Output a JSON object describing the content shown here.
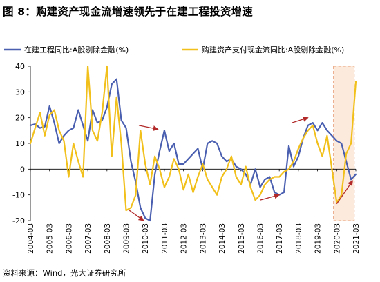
{
  "figure": {
    "title": "图 8：购建资产现金流增速领先于在建工程投资增速",
    "source": "资料来源：Wind，光大证券研究所"
  },
  "chart_data": {
    "type": "line",
    "ylim": [
      -20,
      40
    ],
    "yticks": [
      -20,
      -10,
      0,
      10,
      20,
      30,
      40
    ],
    "x_start": "2004-03",
    "x_end": "2021-03",
    "xticks": [
      "2004-03",
      "2005-03",
      "2006-03",
      "2007-03",
      "2008-03",
      "2009-03",
      "2010-03",
      "2011-03",
      "2012-03",
      "2013-03",
      "2014-03",
      "2015-03",
      "2016-03",
      "2017-03",
      "2018-03",
      "2019-03",
      "2020-03",
      "2021-03"
    ],
    "legend_position": "top",
    "grid": false,
    "colors": {
      "series1": "#4a5fb0",
      "series2": "#f2c01b",
      "arrow": "#b22a2a",
      "highlight_fill": "#fbe3d0",
      "highlight_border": "#e8a07a"
    },
    "highlight": {
      "x": [
        "2020-01",
        "2021-02"
      ]
    },
    "annotations": {
      "arrows": [
        {
          "from": [
            "2009-05",
            -16
          ],
          "to": [
            "2010-02",
            -20
          ]
        },
        {
          "from": [
            "2009-11",
            17
          ],
          "to": [
            "2010-11",
            15.5
          ]
        },
        {
          "from": [
            "2016-03",
            -12
          ],
          "to": [
            "2017-03",
            -10
          ]
        },
        {
          "from": [
            "2017-11",
            18
          ],
          "to": [
            "2018-09",
            20
          ]
        },
        {
          "from": [
            "2020-03",
            -13.5
          ],
          "to": [
            "2021-01",
            -4.5
          ]
        }
      ]
    },
    "series": [
      {
        "name": "在建工程同比:A股剔除金融(%)",
        "points": [
          [
            "2004-03",
            17
          ],
          [
            "2004-06",
            17.5
          ],
          [
            "2004-09",
            16
          ],
          [
            "2004-12",
            16.5
          ],
          [
            "2005-03",
            24.5
          ],
          [
            "2005-06",
            18
          ],
          [
            "2005-09",
            10
          ],
          [
            "2005-12",
            13
          ],
          [
            "2006-03",
            15
          ],
          [
            "2006-06",
            16
          ],
          [
            "2006-09",
            23
          ],
          [
            "2006-12",
            17
          ],
          [
            "2007-03",
            11
          ],
          [
            "2007-06",
            23
          ],
          [
            "2007-09",
            18
          ],
          [
            "2007-12",
            19
          ],
          [
            "2008-03",
            24
          ],
          [
            "2008-06",
            33
          ],
          [
            "2008-09",
            35
          ],
          [
            "2008-12",
            19
          ],
          [
            "2009-03",
            16
          ],
          [
            "2009-06",
            3
          ],
          [
            "2009-09",
            -5
          ],
          [
            "2009-12",
            -15
          ],
          [
            "2010-03",
            -19
          ],
          [
            "2010-06",
            -20
          ],
          [
            "2010-09",
            -2
          ],
          [
            "2010-12",
            7
          ],
          [
            "2011-03",
            15
          ],
          [
            "2011-06",
            7
          ],
          [
            "2011-09",
            10
          ],
          [
            "2011-12",
            2
          ],
          [
            "2012-03",
            2
          ],
          [
            "2012-06",
            4
          ],
          [
            "2012-09",
            6
          ],
          [
            "2012-12",
            8
          ],
          [
            "2013-03",
            0
          ],
          [
            "2013-06",
            10
          ],
          [
            "2013-09",
            11
          ],
          [
            "2013-12",
            10
          ],
          [
            "2014-03",
            5
          ],
          [
            "2014-06",
            3
          ],
          [
            "2014-09",
            4
          ],
          [
            "2014-12",
            1
          ],
          [
            "2015-03",
            0
          ],
          [
            "2015-06",
            -2
          ],
          [
            "2015-09",
            -6
          ],
          [
            "2015-12",
            0
          ],
          [
            "2016-03",
            -7
          ],
          [
            "2016-06",
            -4
          ],
          [
            "2016-09",
            -3
          ],
          [
            "2016-12",
            -9
          ],
          [
            "2017-03",
            -10
          ],
          [
            "2017-06",
            -9
          ],
          [
            "2017-09",
            9
          ],
          [
            "2017-12",
            1
          ],
          [
            "2018-03",
            5
          ],
          [
            "2018-06",
            12
          ],
          [
            "2018-09",
            17
          ],
          [
            "2018-12",
            18
          ],
          [
            "2019-03",
            15
          ],
          [
            "2019-06",
            18
          ],
          [
            "2019-09",
            15
          ],
          [
            "2019-12",
            13
          ],
          [
            "2020-03",
            11
          ],
          [
            "2020-06",
            10
          ],
          [
            "2020-09",
            3
          ],
          [
            "2020-12",
            -4
          ],
          [
            "2021-03",
            -2
          ]
        ]
      },
      {
        "name": "购建资产支付现金流同比:A股剔除金融(%)",
        "points": [
          [
            "2004-03",
            10
          ],
          [
            "2004-06",
            16
          ],
          [
            "2004-09",
            22
          ],
          [
            "2004-12",
            13
          ],
          [
            "2005-03",
            21
          ],
          [
            "2005-06",
            23
          ],
          [
            "2005-09",
            15
          ],
          [
            "2005-12",
            11
          ],
          [
            "2006-03",
            -3
          ],
          [
            "2006-06",
            10
          ],
          [
            "2006-09",
            3
          ],
          [
            "2006-12",
            -3
          ],
          [
            "2007-03",
            40
          ],
          [
            "2007-06",
            15
          ],
          [
            "2007-09",
            11
          ],
          [
            "2007-12",
            22
          ],
          [
            "2008-03",
            40
          ],
          [
            "2008-06",
            5
          ],
          [
            "2008-09",
            28
          ],
          [
            "2008-12",
            10
          ],
          [
            "2009-03",
            -16
          ],
          [
            "2009-06",
            -15
          ],
          [
            "2009-09",
            -10
          ],
          [
            "2009-12",
            15
          ],
          [
            "2010-03",
            2
          ],
          [
            "2010-06",
            -6
          ],
          [
            "2010-09",
            5
          ],
          [
            "2010-12",
            0
          ],
          [
            "2011-03",
            -7
          ],
          [
            "2011-06",
            -3
          ],
          [
            "2011-09",
            4
          ],
          [
            "2011-12",
            0
          ],
          [
            "2012-03",
            -8
          ],
          [
            "2012-06",
            -2
          ],
          [
            "2012-09",
            -9
          ],
          [
            "2012-12",
            -3
          ],
          [
            "2013-03",
            2
          ],
          [
            "2013-06",
            -4
          ],
          [
            "2013-09",
            -7
          ],
          [
            "2013-12",
            -10
          ],
          [
            "2014-03",
            -3
          ],
          [
            "2014-06",
            0
          ],
          [
            "2014-09",
            5
          ],
          [
            "2014-12",
            -3
          ],
          [
            "2015-03",
            -6
          ],
          [
            "2015-06",
            1
          ],
          [
            "2015-09",
            -7
          ],
          [
            "2015-12",
            -12
          ],
          [
            "2016-03",
            -10
          ],
          [
            "2016-06",
            -6
          ],
          [
            "2016-09",
            -4
          ],
          [
            "2016-12",
            -3
          ],
          [
            "2017-03",
            -3
          ],
          [
            "2017-06",
            -1
          ],
          [
            "2017-09",
            0
          ],
          [
            "2017-12",
            3
          ],
          [
            "2018-03",
            8
          ],
          [
            "2018-06",
            12
          ],
          [
            "2018-09",
            15
          ],
          [
            "2018-12",
            17
          ],
          [
            "2019-03",
            10
          ],
          [
            "2019-06",
            5
          ],
          [
            "2019-09",
            13
          ],
          [
            "2019-12",
            0
          ],
          [
            "2020-03",
            -13
          ],
          [
            "2020-06",
            -10
          ],
          [
            "2020-09",
            6
          ],
          [
            "2020-12",
            10
          ],
          [
            "2021-03",
            34
          ]
        ]
      }
    ]
  }
}
